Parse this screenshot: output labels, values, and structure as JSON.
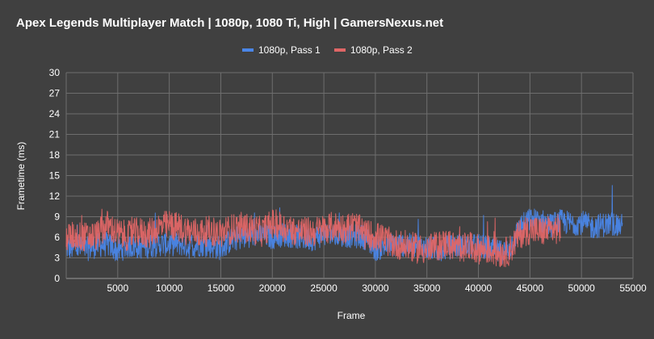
{
  "chart_data": {
    "type": "line",
    "title": "Apex Legends Multiplayer Match | 1080p, 1080 Ti, High | GamersNexus.net",
    "xlabel": "Frame",
    "ylabel": "Frametime (ms)",
    "xlim": [
      0,
      55000
    ],
    "ylim": [
      0,
      30
    ],
    "x_ticks": [
      "5000",
      "10000",
      "15000",
      "20000",
      "25000",
      "30000",
      "35000",
      "40000",
      "45000",
      "50000",
      "55000"
    ],
    "y_ticks": [
      "0",
      "3",
      "6",
      "9",
      "12",
      "15",
      "18",
      "21",
      "24",
      "27",
      "30"
    ],
    "grid": true,
    "legend_position": "top-center",
    "colors": {
      "background": "#404040",
      "grid": "#6e6e6e",
      "pass1": "#4a86e8",
      "pass2": "#e06666"
    },
    "series": [
      {
        "name": "1080p, Pass 1",
        "x": [
          0,
          1000,
          2000,
          3000,
          4000,
          5000,
          6000,
          7000,
          8000,
          9000,
          10000,
          11000,
          12000,
          13000,
          14000,
          15000,
          16000,
          17000,
          18000,
          19000,
          20000,
          21000,
          22000,
          23000,
          24000,
          25000,
          26000,
          27000,
          28000,
          29000,
          30000,
          31000,
          32000,
          33000,
          34000,
          35000,
          36000,
          37000,
          38000,
          39000,
          40000,
          41000,
          42000,
          43000,
          44000,
          45000,
          46000,
          47000,
          48000,
          49000,
          50000,
          51000,
          52000,
          53000,
          54000
        ],
        "y": [
          4.5,
          4.4,
          4.3,
          4.8,
          5.0,
          4.0,
          4.8,
          4.6,
          4.7,
          5.0,
          5.0,
          5.1,
          4.6,
          5.0,
          4.8,
          4.4,
          5.6,
          6.0,
          6.4,
          6.3,
          6.0,
          6.4,
          6.2,
          5.9,
          5.8,
          6.5,
          6.1,
          6.3,
          6.2,
          6.0,
          4.3,
          4.7,
          5.0,
          4.9,
          4.6,
          4.5,
          4.3,
          4.5,
          4.8,
          4.6,
          4.8,
          4.3,
          3.8,
          4.2,
          7.5,
          8.5,
          8.4,
          7.8,
          8.3,
          8.0,
          8.2,
          7.5,
          7.8,
          8.0,
          7.6
        ]
      },
      {
        "name": "1080p, Pass 2",
        "x": [
          0,
          1000,
          2000,
          3000,
          4000,
          5000,
          6000,
          7000,
          8000,
          9000,
          10000,
          11000,
          12000,
          13000,
          14000,
          15000,
          16000,
          17000,
          18000,
          19000,
          20000,
          21000,
          22000,
          23000,
          24000,
          25000,
          26000,
          27000,
          28000,
          29000,
          30000,
          31000,
          32000,
          33000,
          34000,
          35000,
          36000,
          37000,
          38000,
          39000,
          40000,
          41000,
          42000,
          43000,
          44000,
          45000,
          46000,
          47000,
          48000
        ],
        "y": [
          6.0,
          6.2,
          6.0,
          6.3,
          7.8,
          6.5,
          6.2,
          6.8,
          6.5,
          7.5,
          7.8,
          7.4,
          6.9,
          6.6,
          7.0,
          6.5,
          7.2,
          7.5,
          7.2,
          6.8,
          8.0,
          7.6,
          7.0,
          6.8,
          6.8,
          7.2,
          7.6,
          7.3,
          7.7,
          6.4,
          6.2,
          5.5,
          5.0,
          4.8,
          4.4,
          4.2,
          4.7,
          5.2,
          4.3,
          4.6,
          4.3,
          4.2,
          3.7,
          4.0,
          6.5,
          7.2,
          6.8,
          7.0,
          7.3
        ]
      }
    ]
  }
}
